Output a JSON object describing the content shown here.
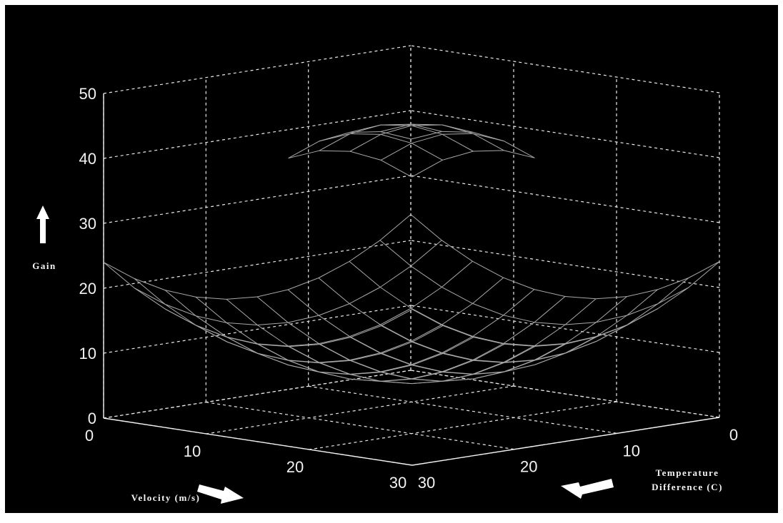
{
  "chart_data": {
    "type": "surface",
    "title": "",
    "zlabel": "Gain",
    "xlabel": "Velocity (m/s)",
    "ylabel_line1": "Temperature",
    "ylabel_line2": "Difference (C)",
    "z_ticks": [
      "0",
      "10",
      "20",
      "30",
      "40",
      "50"
    ],
    "x_ticks": [
      "0",
      "10",
      "20",
      "30"
    ],
    "y_ticks": [
      "0",
      "10",
      "20",
      "30"
    ],
    "zlim": [
      0,
      50
    ],
    "xlim": [
      0,
      30
    ],
    "ylim": [
      0,
      30
    ],
    "grid": true,
    "surfaces": [
      {
        "name": "lower",
        "x": [
          0,
          3,
          6,
          9,
          12,
          15,
          18,
          21,
          24,
          27,
          30
        ],
        "y": [
          0,
          3,
          6,
          9,
          12,
          15,
          18,
          21,
          24,
          27,
          30
        ],
        "z_corner": 24,
        "z_center": 6
      },
      {
        "name": "upper",
        "x": [
          9,
          12,
          15,
          18,
          21
        ],
        "y": [
          9,
          12,
          15,
          18,
          21
        ],
        "z_corner": 40,
        "z_center": 45
      }
    ],
    "colors": {
      "background": "#000000",
      "grid": "#e8e8e8",
      "mesh": "#a8a8a8",
      "text": "#f2f2f2"
    }
  }
}
